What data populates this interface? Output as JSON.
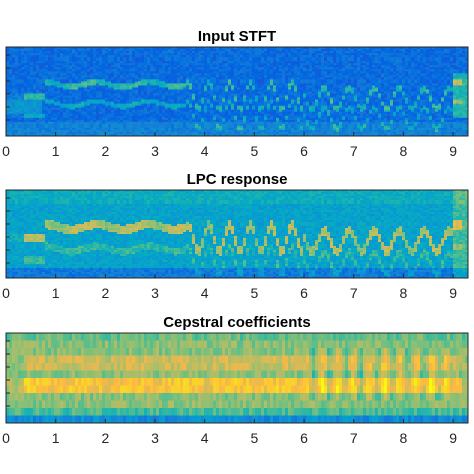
{
  "chart_data": [
    {
      "type": "heatmap",
      "title": "Input STFT",
      "xlabel": "",
      "ylabel": "",
      "xlim": [
        0,
        9.3
      ],
      "xticks": [
        0,
        1,
        2,
        3,
        4,
        5,
        6,
        7,
        8,
        9
      ],
      "yticklabels_visible": false,
      "colormap": "parula",
      "style": "stft",
      "colors": {
        "low": "#352a87",
        "high": "#f9fb0e"
      }
    },
    {
      "type": "heatmap",
      "title": "LPC response",
      "xlabel": "",
      "ylabel": "",
      "xlim": [
        0,
        9.3
      ],
      "xticks": [
        0,
        1,
        2,
        3,
        4,
        5,
        6,
        7,
        8,
        9
      ],
      "yticklabels_visible": false,
      "colormap": "parula",
      "style": "lpc",
      "colors": {
        "low": "#352a87",
        "high": "#f9fb0e"
      }
    },
    {
      "type": "heatmap",
      "title": "Cepstral coefficients",
      "xlabel": "",
      "ylabel": "",
      "xlim": [
        0,
        9.3
      ],
      "xticks": [
        0,
        1,
        2,
        3,
        4,
        5,
        6,
        7,
        8,
        9
      ],
      "yticklabels_visible": false,
      "colormap": "parula",
      "style": "cepstral",
      "colors": {
        "low": "#352a87",
        "high": "#f9fb0e"
      }
    }
  ]
}
